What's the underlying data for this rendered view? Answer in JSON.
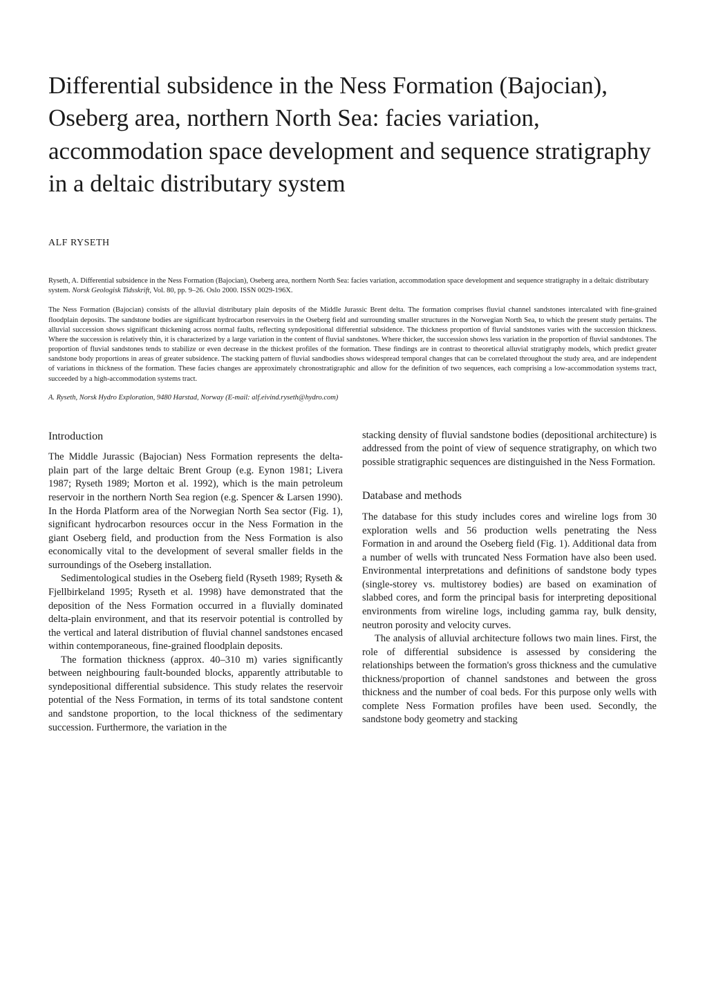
{
  "title": "Differential subsidence in the Ness Formation (Bajocian), Oseberg area, northern North Sea: facies variation, accommodation space development and sequence stratigraphy in a deltaic distributary system",
  "author": "ALF RYSETH",
  "citation_a": "Ryseth, A. Differential subsidence in the Ness Formation (Bajocian), Oseberg area, northern North Sea: facies variation, accommodation space development and sequence stratigraphy in a deltaic distributary system. ",
  "citation_journal": "Norsk Geologisk Tidsskrift,",
  "citation_b": " Vol. 80, pp. 9–26. Oslo 2000. ISSN 0029-196X.",
  "abstract": "The Ness Formation (Bajocian) consists of the alluvial distributary plain deposits of the Middle Jurassic Brent delta. The formation comprises fluvial channel sandstones intercalated with fine-grained floodplain deposits. The sandstone bodies are significant hydrocarbon reservoirs in the Oseberg field and surrounding smaller structures in the Norwegian North Sea, to which the present study pertains. The alluvial succession shows significant thickening across normal faults, reflecting syndepositional differential subsidence. The thickness proportion of fluvial sandstones varies with the succession thickness. Where the succession is relatively thin, it is characterized by a large variation in the content of fluvial sandstones. Where thicker, the succession shows less variation in the proportion of fluvial sandstones. The proportion of fluvial sandstones tends to stabilize or even decrease in the thickest profiles of the formation. These findings are in contrast to theoretical alluvial stratigraphy models, which predict greater sandstone body proportions in areas of greater subsidence. The stacking pattern of fluvial sandbodies shows widespread temporal changes that can be correlated throughout the study area, and are independent of variations in thickness of the formation. These facies changes are approximately chronostratigraphic and allow for the definition of two sequences, each comprising a low-accommodation systems tract, succeeded by a high-accommodation systems tract.",
  "affiliation": "A. Ryseth, Norsk Hydro Exploration, 9480 Harstad, Norway (E-mail: alf.eivind.ryseth@hydro.com)",
  "left_col": {
    "heading": "Introduction",
    "p1": "The Middle Jurassic (Bajocian) Ness Formation represents the delta-plain part of the large deltaic Brent Group (e.g. Eynon 1981; Livera 1987; Ryseth 1989; Morton et al. 1992), which is the main petroleum reservoir in the northern North Sea region (e.g. Spencer & Larsen 1990). In the Horda Platform area of the Norwegian North Sea sector (Fig. 1), significant hydrocarbon resources occur in the Ness Formation in the giant Oseberg field, and production from the Ness Formation is also economically vital to the development of several smaller fields in the surroundings of the Oseberg installation.",
    "p2": "Sedimentological studies in the Oseberg field (Ryseth 1989; Ryseth & Fjellbirkeland 1995; Ryseth et al. 1998) have demonstrated that the deposition of the Ness Formation occurred in a fluvially dominated delta-plain environment, and that its reservoir potential is controlled by the vertical and lateral distribution of fluvial channel sandstones encased within contemporaneous, fine-grained floodplain deposits.",
    "p3": "The formation thickness (approx. 40–310 m) varies significantly between neighbouring fault-bounded blocks, apparently attributable to syndepositional differential subsidence. This study relates the reservoir potential of the Ness Formation, in terms of its total sandstone content and sandstone proportion, to the local thickness of the sedimentary succession. Furthermore, the variation in the"
  },
  "right_col": {
    "p0": "stacking density of fluvial sandstone bodies (depositional architecture) is addressed from the point of view of sequence stratigraphy, on which two possible stratigraphic sequences are distinguished in the Ness Formation.",
    "heading2": "Database and methods",
    "p1": "The database for this study includes cores and wireline logs from 30 exploration wells and 56 production wells penetrating the Ness Formation in and around the Oseberg field (Fig. 1). Additional data from a number of wells with truncated Ness Formation have also been used. Environmental interpretations and definitions of sandstone body types (single-storey vs. multistorey bodies) are based on examination of slabbed cores, and form the principal basis for interpreting depositional environments from wireline logs, including gamma ray, bulk density, neutron porosity and velocity curves.",
    "p2": "The analysis of alluvial architecture follows two main lines. First, the role of differential subsidence is assessed by considering the relationships between the formation's gross thickness and the cumulative thickness/proportion of channel sandstones and between the gross thickness and the number of coal beds. For this purpose only wells with complete Ness Formation profiles have been used. Secondly, the sandstone body geometry and stacking"
  }
}
